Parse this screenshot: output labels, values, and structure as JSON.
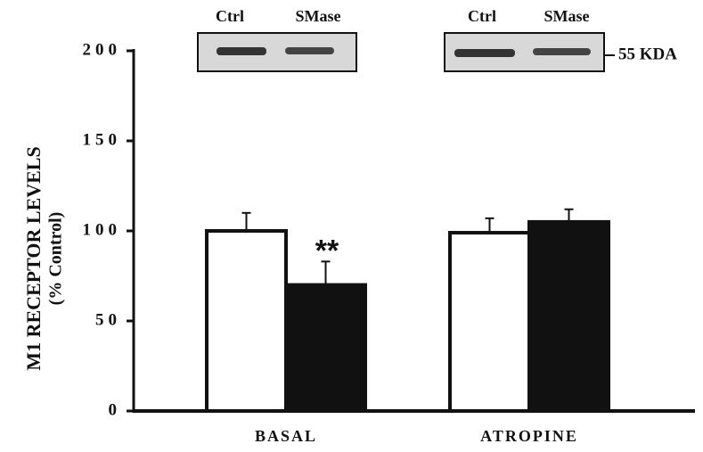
{
  "chart_data": {
    "type": "bar",
    "ylabel": [
      "M1 RECEPTOR LEVELS",
      "(% Control)"
    ],
    "categories": [
      "BASAL",
      "ATROPINE"
    ],
    "series": [
      {
        "name": "Ctrl",
        "color": "#ffffff",
        "values": [
          100,
          99
        ],
        "errors": [
          10,
          8
        ]
      },
      {
        "name": "SMase",
        "color": "#111111",
        "values": [
          70,
          105
        ],
        "errors": [
          13,
          7
        ]
      }
    ],
    "ylim": [
      0,
      200
    ],
    "yticks": [
      0,
      50,
      100,
      150,
      200
    ],
    "annotation": "**",
    "blot_marker": "55 KDA"
  }
}
